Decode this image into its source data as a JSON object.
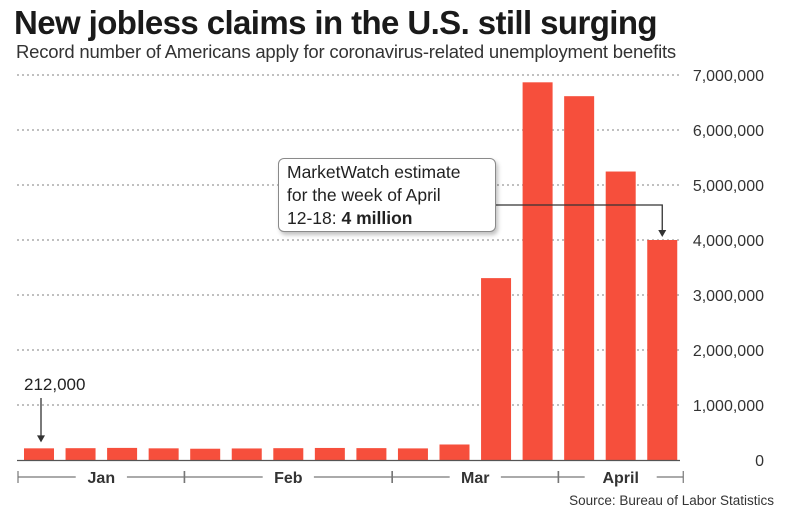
{
  "title": "New jobless claims in the U.S. still surging",
  "subtitle": "Record number of Americans apply for coronavirus-related unemployment benefits",
  "source": "Source: Bureau of Labor Statistics",
  "callout": {
    "line1": "MarketWatch estimate",
    "line2": "for the week of April",
    "line3_prefix": "12-18: ",
    "line3_bold": "4 million"
  },
  "colors": {
    "bar": "#f64f3c",
    "grid": "#9a9a9a",
    "text": "#333333"
  },
  "chart_data": {
    "type": "bar",
    "title": "New jobless claims in the U.S. still surging",
    "xlabel": "",
    "ylabel": "",
    "ylim": [
      0,
      7000000
    ],
    "yticks": [
      0,
      1000000,
      2000000,
      3000000,
      4000000,
      5000000,
      6000000,
      7000000
    ],
    "ytick_labels": [
      "0",
      "1,000,000",
      "2,000,000",
      "3,000,000",
      "4,000,000",
      "5,000,000",
      "6,000,000",
      "7,000,000"
    ],
    "values": [
      212000,
      215000,
      220000,
      212000,
      205000,
      210000,
      215000,
      219000,
      216000,
      211000,
      282000,
      3307000,
      6867000,
      6615000,
      5245000,
      4000000
    ],
    "month_groups": [
      {
        "label": "Jan",
        "start": 0,
        "end": 3
      },
      {
        "label": "Feb",
        "start": 4,
        "end": 8
      },
      {
        "label": "Mar",
        "start": 9,
        "end": 12
      },
      {
        "label": "April",
        "start": 13,
        "end": 15
      }
    ],
    "annotations": [
      {
        "text": "212,000",
        "bar_index": 0
      }
    ],
    "estimate_bar_index": 15,
    "grid": true
  }
}
